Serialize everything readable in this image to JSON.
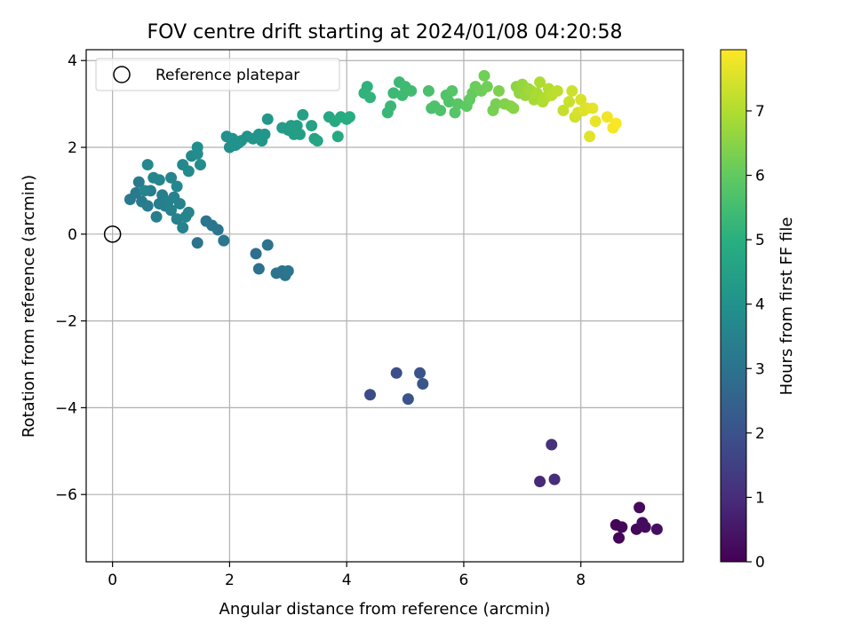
{
  "chart_data": {
    "type": "scatter",
    "title": "FOV centre drift starting at 2024/01/08 04:20:58",
    "xlabel": "Angular distance from reference (arcmin)",
    "ylabel": "Rotation from reference (arcmin)",
    "xlim": [
      -0.45,
      9.75
    ],
    "ylim": [
      -7.55,
      4.25
    ],
    "xticks": [
      0,
      2,
      4,
      6,
      8
    ],
    "yticks": [
      -6,
      -4,
      -2,
      0,
      2,
      4
    ],
    "grid": true,
    "legend": {
      "placement": "top-left",
      "entries": [
        "Reference platepar"
      ]
    },
    "reference_point": {
      "x": 0,
      "y": 0,
      "label": "Reference platepar"
    },
    "colorbar": {
      "label": "Hours from first FF file",
      "colormap": "viridis",
      "range": [
        0,
        7.95
      ],
      "ticks": [
        0,
        1,
        2,
        3,
        4,
        5,
        6,
        7
      ]
    },
    "points": [
      [
        8.6,
        -6.7,
        0.05
      ],
      [
        8.65,
        -7.0,
        0.1
      ],
      [
        8.7,
        -6.75,
        0.12
      ],
      [
        8.95,
        -6.8,
        0.15
      ],
      [
        9.0,
        -6.3,
        0.2
      ],
      [
        9.05,
        -6.65,
        0.22
      ],
      [
        9.1,
        -6.75,
        0.25
      ],
      [
        9.3,
        -6.8,
        0.3
      ],
      [
        7.3,
        -5.7,
        0.9
      ],
      [
        7.55,
        -5.65,
        1.0
      ],
      [
        7.5,
        -4.85,
        1.1
      ],
      [
        4.4,
        -3.7,
        1.8
      ],
      [
        4.85,
        -3.2,
        1.9
      ],
      [
        5.05,
        -3.8,
        2.0
      ],
      [
        5.25,
        -3.2,
        2.05
      ],
      [
        5.3,
        -3.45,
        2.1
      ],
      [
        2.45,
        -0.45,
        2.9
      ],
      [
        2.5,
        -0.8,
        2.95
      ],
      [
        2.65,
        -0.25,
        3.0
      ],
      [
        2.8,
        -0.9,
        3.0
      ],
      [
        2.9,
        -0.85,
        3.05
      ],
      [
        2.95,
        -0.95,
        3.05
      ],
      [
        3.0,
        -0.85,
        3.1
      ],
      [
        1.45,
        -0.2,
        3.0
      ],
      [
        1.6,
        0.3,
        3.05
      ],
      [
        1.7,
        0.2,
        3.1
      ],
      [
        1.8,
        0.1,
        3.1
      ],
      [
        1.9,
        -0.15,
        3.15
      ],
      [
        0.3,
        0.8,
        3.2
      ],
      [
        0.4,
        0.95,
        3.2
      ],
      [
        0.45,
        1.2,
        3.25
      ],
      [
        0.5,
        0.75,
        3.25
      ],
      [
        0.6,
        0.65,
        3.3
      ],
      [
        0.65,
        1.0,
        3.3
      ],
      [
        0.75,
        0.4,
        3.35
      ],
      [
        0.8,
        0.7,
        3.35
      ],
      [
        0.85,
        0.9,
        3.4
      ],
      [
        0.9,
        0.65,
        3.4
      ],
      [
        0.95,
        0.75,
        3.45
      ],
      [
        1.0,
        0.55,
        3.45
      ],
      [
        1.05,
        0.85,
        3.5
      ],
      [
        1.1,
        0.35,
        3.5
      ],
      [
        1.15,
        0.7,
        3.5
      ],
      [
        1.2,
        0.15,
        3.5
      ],
      [
        1.25,
        0.4,
        3.55
      ],
      [
        1.3,
        0.5,
        3.55
      ],
      [
        0.55,
        1.0,
        3.55
      ],
      [
        0.7,
        1.3,
        3.6
      ],
      [
        0.8,
        1.25,
        3.6
      ],
      [
        1.0,
        1.3,
        3.6
      ],
      [
        1.1,
        1.1,
        3.65
      ],
      [
        0.6,
        1.6,
        3.7
      ],
      [
        1.2,
        1.6,
        3.7
      ],
      [
        1.3,
        1.45,
        3.75
      ],
      [
        1.35,
        1.8,
        3.75
      ],
      [
        1.45,
        1.85,
        3.8
      ],
      [
        1.5,
        1.6,
        3.8
      ],
      [
        1.45,
        2.0,
        3.85
      ],
      [
        1.95,
        2.25,
        3.95
      ],
      [
        2.0,
        2.0,
        3.95
      ],
      [
        2.05,
        2.2,
        4.0
      ],
      [
        2.1,
        2.05,
        4.0
      ],
      [
        2.15,
        2.1,
        4.0
      ],
      [
        2.2,
        2.15,
        4.05
      ],
      [
        2.3,
        2.25,
        4.05
      ],
      [
        2.4,
        2.2,
        4.1
      ],
      [
        2.5,
        2.3,
        4.1
      ],
      [
        2.55,
        2.15,
        4.15
      ],
      [
        2.6,
        2.3,
        4.15
      ],
      [
        2.65,
        2.65,
        4.2
      ],
      [
        2.9,
        2.45,
        4.35
      ],
      [
        3.0,
        2.4,
        4.35
      ],
      [
        3.05,
        2.5,
        4.4
      ],
      [
        3.1,
        2.3,
        4.4
      ],
      [
        3.15,
        2.5,
        4.45
      ],
      [
        3.2,
        2.3,
        4.45
      ],
      [
        3.25,
        2.75,
        4.5
      ],
      [
        3.4,
        2.5,
        4.6
      ],
      [
        3.45,
        2.2,
        4.6
      ],
      [
        3.5,
        2.15,
        4.65
      ],
      [
        3.7,
        2.7,
        4.75
      ],
      [
        3.8,
        2.6,
        4.8
      ],
      [
        3.85,
        2.25,
        4.8
      ],
      [
        3.9,
        2.7,
        4.85
      ],
      [
        4.0,
        2.65,
        4.85
      ],
      [
        4.05,
        2.7,
        4.9
      ],
      [
        4.3,
        3.25,
        5.1
      ],
      [
        4.35,
        3.4,
        5.1
      ],
      [
        4.4,
        3.15,
        5.15
      ],
      [
        4.7,
        2.8,
        5.3
      ],
      [
        4.75,
        2.95,
        5.3
      ],
      [
        4.8,
        3.25,
        5.35
      ],
      [
        4.9,
        3.5,
        5.35
      ],
      [
        4.95,
        3.2,
        5.4
      ],
      [
        5.0,
        3.4,
        5.4
      ],
      [
        5.1,
        3.3,
        5.45
      ],
      [
        5.4,
        3.3,
        5.6
      ],
      [
        5.45,
        2.9,
        5.6
      ],
      [
        5.5,
        2.95,
        5.65
      ],
      [
        5.6,
        2.85,
        5.7
      ],
      [
        5.7,
        3.2,
        5.75
      ],
      [
        5.75,
        3.05,
        5.75
      ],
      [
        5.8,
        3.3,
        5.8
      ],
      [
        5.85,
        2.8,
        5.8
      ],
      [
        5.9,
        3.0,
        5.85
      ],
      [
        6.05,
        2.95,
        5.95
      ],
      [
        6.1,
        3.1,
        6.0
      ],
      [
        6.15,
        3.25,
        6.05
      ],
      [
        6.2,
        3.4,
        6.1
      ],
      [
        6.3,
        3.3,
        6.15
      ],
      [
        6.35,
        3.65,
        6.2
      ],
      [
        6.4,
        3.4,
        6.2
      ],
      [
        6.5,
        2.85,
        6.3
      ],
      [
        6.55,
        3.0,
        6.3
      ],
      [
        6.6,
        3.3,
        6.35
      ],
      [
        6.7,
        3.0,
        6.4
      ],
      [
        6.8,
        2.95,
        6.45
      ],
      [
        6.85,
        2.9,
        6.5
      ],
      [
        6.9,
        3.4,
        6.55
      ],
      [
        6.95,
        3.25,
        6.6
      ],
      [
        7.0,
        3.45,
        6.65
      ],
      [
        7.05,
        3.2,
        6.7
      ],
      [
        7.1,
        3.35,
        6.75
      ],
      [
        7.15,
        3.3,
        6.8
      ],
      [
        7.2,
        3.1,
        6.85
      ],
      [
        7.25,
        3.25,
        6.9
      ],
      [
        7.3,
        3.5,
        6.95
      ],
      [
        7.35,
        3.05,
        7.0
      ],
      [
        7.4,
        3.15,
        7.0
      ],
      [
        7.45,
        3.35,
        7.05
      ],
      [
        7.5,
        3.2,
        7.1
      ],
      [
        7.6,
        3.3,
        7.15
      ],
      [
        7.7,
        2.85,
        7.25
      ],
      [
        7.8,
        3.05,
        7.3
      ],
      [
        7.85,
        3.3,
        7.35
      ],
      [
        7.9,
        2.7,
        7.4
      ],
      [
        7.95,
        2.8,
        7.45
      ],
      [
        8.0,
        3.1,
        7.5
      ],
      [
        8.05,
        2.85,
        7.55
      ],
      [
        8.1,
        2.9,
        7.55
      ],
      [
        8.15,
        2.25,
        7.6
      ],
      [
        8.2,
        2.9,
        7.65
      ],
      [
        8.25,
        2.6,
        7.7
      ],
      [
        8.45,
        2.7,
        7.8
      ],
      [
        8.55,
        2.45,
        7.85
      ],
      [
        8.6,
        2.55,
        7.9
      ]
    ]
  }
}
